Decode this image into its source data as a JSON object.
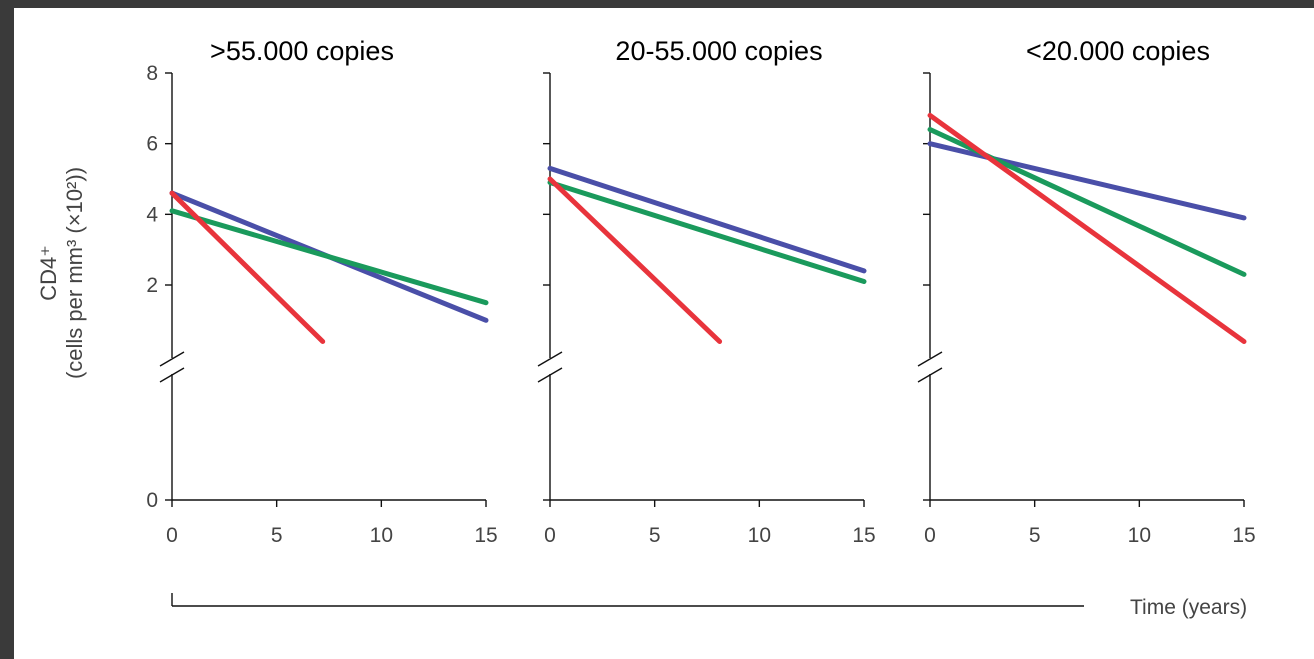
{
  "chart_data": {
    "type": "line",
    "ylabel_line1": "CD4⁺",
    "ylabel_line2": "(cells per mm³ (×10²))",
    "xlabel": "Time (years)",
    "yticks": [
      0,
      2,
      4,
      6,
      8
    ],
    "xticks": [
      0,
      5,
      10,
      15
    ],
    "xlim": [
      0,
      15
    ],
    "ylim": [
      0,
      8
    ],
    "colors": {
      "blue": "#4a4fa8",
      "green": "#1a9a5c",
      "red": "#e8343c"
    },
    "panels": [
      {
        "title": ">55.000 copies",
        "series": [
          {
            "color": "blue",
            "x": [
              0,
              15
            ],
            "y": [
              4.6,
              1.0
            ]
          },
          {
            "color": "green",
            "x": [
              0,
              15
            ],
            "y": [
              4.1,
              1.5
            ]
          },
          {
            "color": "red",
            "x": [
              0,
              7.2
            ],
            "y": [
              4.6,
              0.4
            ]
          }
        ]
      },
      {
        "title": "20-55.000 copies",
        "series": [
          {
            "color": "blue",
            "x": [
              0,
              15
            ],
            "y": [
              5.3,
              2.4
            ]
          },
          {
            "color": "green",
            "x": [
              0,
              15
            ],
            "y": [
              4.9,
              2.1
            ]
          },
          {
            "color": "red",
            "x": [
              0,
              8.1
            ],
            "y": [
              5.0,
              0.4
            ]
          }
        ]
      },
      {
        "title": "<20.000 copies",
        "series": [
          {
            "color": "blue",
            "x": [
              0,
              15
            ],
            "y": [
              6.0,
              3.9
            ]
          },
          {
            "color": "green",
            "x": [
              0,
              15
            ],
            "y": [
              6.4,
              2.3
            ]
          },
          {
            "color": "red",
            "x": [
              0,
              15
            ],
            "y": [
              6.8,
              0.4
            ]
          }
        ]
      }
    ]
  }
}
